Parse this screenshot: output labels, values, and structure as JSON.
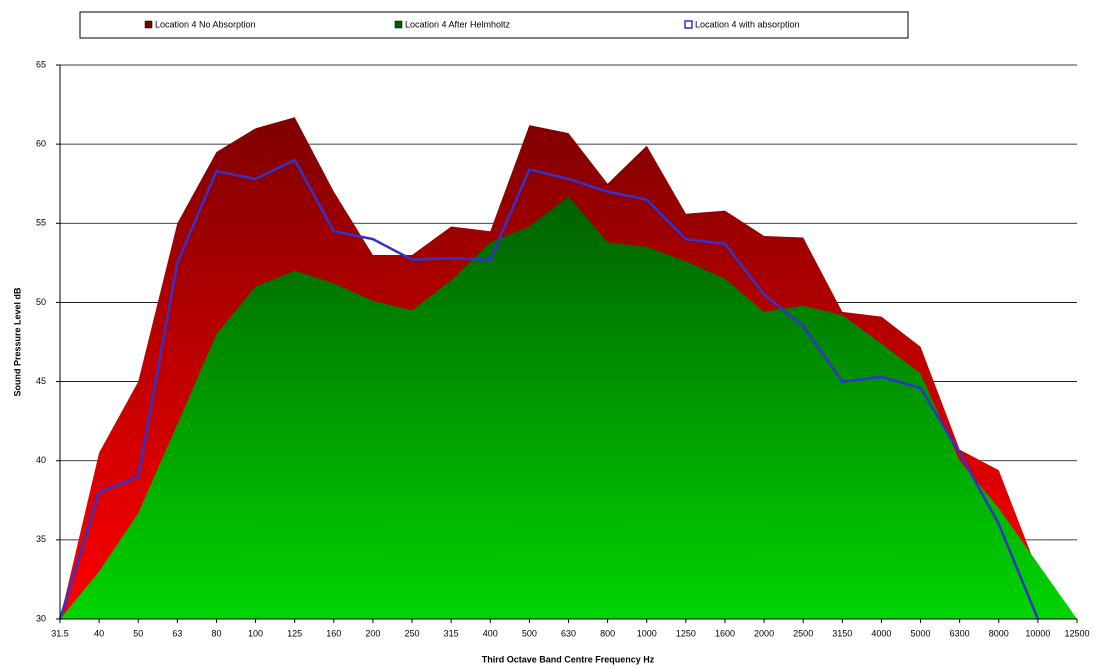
{
  "chart_data": {
    "type": "area",
    "x_label": "Third Octave Band Centre Frequency Hz",
    "y_label": "Sound Pressure Level dB",
    "categories": [
      "31.5",
      "40",
      "50",
      "63",
      "80",
      "100",
      "125",
      "160",
      "200",
      "250",
      "315",
      "400",
      "500",
      "630",
      "800",
      "1000",
      "1250",
      "1600",
      "2000",
      "2500",
      "3150",
      "4000",
      "5000",
      "6300",
      "8000",
      "10000",
      "12500"
    ],
    "series": [
      {
        "name": "Location 4 No Absorption",
        "kind": "area",
        "color": "#800000",
        "values": [
          30,
          40.5,
          45,
          55,
          59.5,
          61,
          61.7,
          57,
          53,
          53,
          54.8,
          54.5,
          61.2,
          60.7,
          57.5,
          59.9,
          55.6,
          55.8,
          54.2,
          54.1,
          49.4,
          49.1,
          47.2,
          40.7,
          39.4,
          33,
          30
        ]
      },
      {
        "name": "Location 4 After Helmholtz",
        "kind": "area",
        "color": "#006000",
        "values": [
          30,
          33,
          36.7,
          42.3,
          48,
          51,
          52,
          51.2,
          50.1,
          49.5,
          51.4,
          53.8,
          54.8,
          56.7,
          53.8,
          53.5,
          52.6,
          51.5,
          49.4,
          49.8,
          49.2,
          47.4,
          45.5,
          40,
          37,
          33.5,
          30
        ]
      },
      {
        "name": "Location 4 with absorption",
        "kind": "line",
        "color": "#3333cc",
        "values": [
          30,
          38,
          39,
          52.5,
          58.3,
          57.8,
          59,
          54.5,
          54,
          52.7,
          52.8,
          52.7,
          58.4,
          57.8,
          57,
          56.5,
          54,
          53.7,
          50.5,
          48.5,
          45,
          45.3,
          44.6,
          40.5,
          36,
          30,
          null
        ]
      }
    ],
    "ylim": [
      30,
      65
    ],
    "yticks": [
      30,
      35,
      40,
      45,
      50,
      55,
      60,
      65
    ],
    "grid": true
  }
}
